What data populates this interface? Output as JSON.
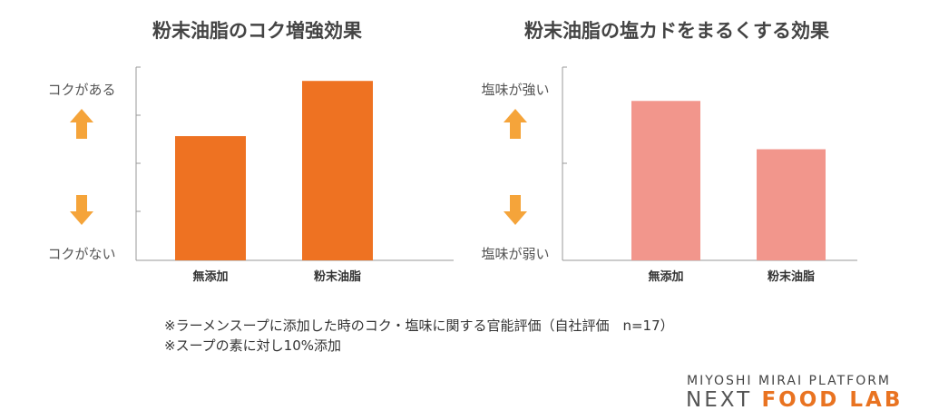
{
  "colors": {
    "bar_left": "#ee7222",
    "bar_right": "#f2968c",
    "arrow": "#f5a43a",
    "axis": "#999999",
    "brand_accent": "#e97321"
  },
  "icons": {
    "up": "arrow-up-icon",
    "down": "arrow-down-icon"
  },
  "chart_data": [
    {
      "type": "bar",
      "title": "粉末油脂のコク増強効果",
      "categories": [
        "無添加",
        "粉末油脂"
      ],
      "values": [
        2.7,
        3.9
      ],
      "ylim": [
        0,
        4.2
      ],
      "y_top_label": "コクがある",
      "y_bottom_label": "コクがない",
      "grid": false
    },
    {
      "type": "bar",
      "title": "粉末油脂の塩カドをまるくする効果",
      "categories": [
        "無添加",
        "粉末油脂"
      ],
      "values": [
        3.3,
        2.3
      ],
      "ylim": [
        0,
        4.0
      ],
      "y_top_label": "塩味が強い",
      "y_bottom_label": "塩味が弱い",
      "grid": false
    }
  ],
  "notes": [
    "※ラーメンスープに添加した時のコク・塩味に関する官能評価（自社評価　n=17）",
    "※スープの素に対し10%添加"
  ],
  "brand": {
    "line1": "MIYOSHI MIRAI PLATFORM",
    "line2_part1": "NEXT ",
    "line2_part2": "FOOD LAB"
  }
}
